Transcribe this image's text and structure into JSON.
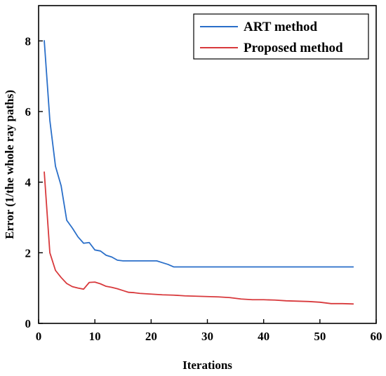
{
  "chart_data": {
    "type": "line",
    "xlabel": "Iterations",
    "ylabel": "Error (1/the whole ray paths)",
    "xlim": [
      0,
      60
    ],
    "ylim": [
      0,
      9
    ],
    "x_ticks": [
      "0",
      "10",
      "20",
      "30",
      "40",
      "50",
      "60"
    ],
    "y_ticks": [
      "0",
      "2",
      "4",
      "6",
      "8"
    ],
    "grid": false,
    "legend_position": "top-right",
    "series": [
      {
        "name": "ART method",
        "color": "#2a6fc9",
        "x": [
          1,
          2,
          3,
          4,
          5,
          6,
          7,
          8,
          9,
          10,
          11,
          12,
          13,
          14,
          15,
          16,
          17,
          18,
          19,
          20,
          21,
          22,
          23,
          24,
          25,
          26,
          28,
          30,
          35,
          40,
          45,
          50,
          56
        ],
        "y": [
          8.02,
          5.75,
          4.45,
          3.9,
          2.92,
          2.7,
          2.45,
          2.27,
          2.29,
          2.08,
          2.05,
          1.93,
          1.88,
          1.79,
          1.77,
          1.77,
          1.77,
          1.77,
          1.77,
          1.77,
          1.77,
          1.72,
          1.67,
          1.6,
          1.6,
          1.6,
          1.6,
          1.6,
          1.6,
          1.6,
          1.6,
          1.6,
          1.6
        ]
      },
      {
        "name": "Proposed method",
        "color": "#d8393c",
        "x": [
          1,
          2,
          3,
          4,
          5,
          6,
          7,
          8,
          9,
          10,
          11,
          12,
          13,
          14,
          15,
          16,
          17,
          18,
          20,
          22,
          24,
          26,
          28,
          30,
          32,
          34,
          36,
          38,
          40,
          42,
          44,
          46,
          48,
          50,
          52,
          54,
          56
        ],
        "y": [
          4.3,
          2.0,
          1.5,
          1.3,
          1.13,
          1.04,
          1.0,
          0.97,
          1.16,
          1.17,
          1.12,
          1.05,
          1.02,
          0.98,
          0.93,
          0.88,
          0.87,
          0.85,
          0.83,
          0.81,
          0.8,
          0.78,
          0.77,
          0.76,
          0.75,
          0.73,
          0.69,
          0.67,
          0.67,
          0.66,
          0.64,
          0.63,
          0.62,
          0.6,
          0.56,
          0.56,
          0.55
        ]
      }
    ]
  }
}
